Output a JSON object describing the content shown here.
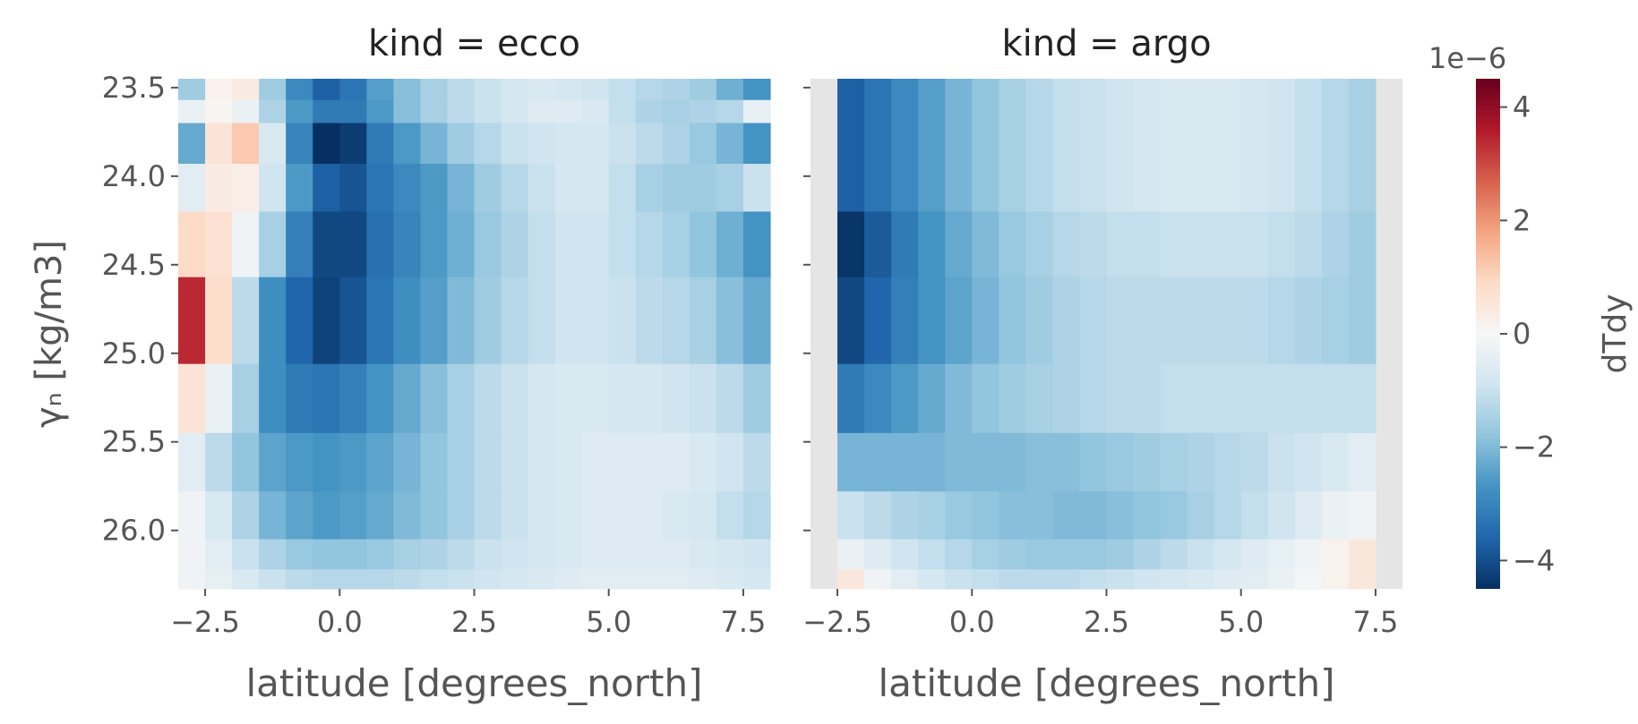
{
  "chart_data": [
    {
      "type": "heatmap",
      "title": "kind = ecco",
      "xlabel": "latitude [degrees_north]",
      "ylabel": "γₙ [kg/m3]",
      "x_ticks": [
        -2.5,
        0.0,
        2.5,
        5.0,
        7.5
      ],
      "x_tick_labels": [
        "−2.5",
        "0.0",
        "2.5",
        "5.0",
        "7.5"
      ],
      "y_ticks": [
        23.5,
        24.0,
        24.5,
        25.0,
        25.5,
        26.0
      ],
      "y_tick_labels": [
        "23.5",
        "24.0",
        "24.5",
        "25.0",
        "25.5",
        "26.0"
      ],
      "xlim": [
        -3.0,
        8.0
      ],
      "ylim": [
        26.33,
        23.45
      ],
      "x_edges": [
        -3.0,
        -2.5,
        -2.0,
        -1.5,
        -1.0,
        -0.5,
        0.0,
        0.5,
        1.0,
        1.5,
        2.0,
        2.5,
        3.0,
        3.5,
        4.0,
        4.5,
        5.0,
        5.5,
        6.0,
        6.5,
        7.0,
        7.5,
        8.0
      ],
      "y_edges": [
        23.45,
        23.57,
        23.7,
        23.93,
        24.2,
        24.57,
        25.06,
        25.45,
        25.78,
        26.05,
        26.22,
        26.33
      ],
      "z_scale": "1e-6",
      "z": [
        [
          -1.6,
          0.2,
          0.4,
          -1.6,
          -2.9,
          -3.7,
          -3.3,
          -2.5,
          -1.9,
          -1.5,
          -1.2,
          -1.0,
          -0.8,
          -0.7,
          -0.8,
          -0.9,
          -1.1,
          -1.3,
          -1.4,
          -1.6,
          -2.2,
          -2.7
        ],
        [
          -0.3,
          0.1,
          -0.3,
          -1.4,
          -2.6,
          -3.2,
          -3.2,
          -2.6,
          -1.9,
          -1.5,
          -1.2,
          -1.0,
          -0.8,
          -0.6,
          -0.6,
          -0.7,
          -1.1,
          -1.4,
          -1.5,
          -1.4,
          -1.3,
          -0.4
        ],
        [
          -2.3,
          0.6,
          1.2,
          -0.7,
          -3.0,
          -4.5,
          -4.3,
          -3.2,
          -2.6,
          -2.1,
          -1.6,
          -1.3,
          -1.0,
          -0.9,
          -0.8,
          -0.8,
          -1.0,
          -1.2,
          -1.4,
          -1.7,
          -2.1,
          -2.7
        ],
        [
          -0.5,
          0.4,
          0.3,
          -0.9,
          -2.6,
          -3.7,
          -3.9,
          -3.3,
          -2.9,
          -2.6,
          -2.1,
          -1.6,
          -1.3,
          -1.0,
          -0.8,
          -0.8,
          -1.1,
          -1.5,
          -1.6,
          -1.6,
          -1.5,
          -1.0
        ],
        [
          0.9,
          0.7,
          -0.2,
          -1.5,
          -3.1,
          -4.1,
          -4.1,
          -3.4,
          -3.0,
          -2.6,
          -2.2,
          -1.7,
          -1.4,
          -1.1,
          -0.9,
          -0.9,
          -1.1,
          -1.3,
          -1.5,
          -1.8,
          -2.2,
          -2.7
        ],
        [
          3.4,
          0.8,
          -1.2,
          -2.8,
          -3.6,
          -4.2,
          -3.9,
          -3.3,
          -2.8,
          -2.5,
          -2.0,
          -1.6,
          -1.3,
          -1.1,
          -0.9,
          -0.9,
          -1.0,
          -1.2,
          -1.3,
          -1.5,
          -1.9,
          -2.3
        ],
        [
          0.6,
          -0.3,
          -1.5,
          -2.8,
          -3.2,
          -3.3,
          -3.1,
          -2.7,
          -2.3,
          -1.9,
          -1.5,
          -1.2,
          -1.0,
          -0.8,
          -0.7,
          -0.7,
          -0.8,
          -0.8,
          -0.9,
          -1.0,
          -1.2,
          -1.6
        ],
        [
          -0.5,
          -1.2,
          -1.8,
          -2.4,
          -2.6,
          -2.7,
          -2.6,
          -2.4,
          -2.1,
          -1.8,
          -1.5,
          -1.2,
          -1.0,
          -0.8,
          -0.7,
          -0.6,
          -0.6,
          -0.6,
          -0.6,
          -0.7,
          -0.9,
          -1.2
        ],
        [
          -0.2,
          -0.7,
          -1.4,
          -2.1,
          -2.4,
          -2.6,
          -2.5,
          -2.3,
          -2.0,
          -1.8,
          -1.5,
          -1.2,
          -1.0,
          -0.8,
          -0.7,
          -0.6,
          -0.6,
          -0.6,
          -0.7,
          -0.8,
          -1.1,
          -1.3
        ],
        [
          -0.2,
          -0.5,
          -1.0,
          -1.4,
          -1.7,
          -1.8,
          -1.8,
          -1.7,
          -1.5,
          -1.4,
          -1.2,
          -1.0,
          -0.9,
          -0.8,
          -0.7,
          -0.6,
          -0.6,
          -0.6,
          -0.6,
          -0.7,
          -0.8,
          -0.9
        ],
        [
          -0.2,
          -0.4,
          -0.7,
          -1.0,
          -1.2,
          -1.3,
          -1.3,
          -1.3,
          -1.2,
          -1.1,
          -1.0,
          -0.9,
          -0.8,
          -0.7,
          -0.6,
          -0.5,
          -0.5,
          -0.5,
          -0.5,
          -0.6,
          -0.7,
          -0.8
        ]
      ]
    },
    {
      "type": "heatmap",
      "title": "kind = argo",
      "xlabel": "latitude [degrees_north]",
      "x_ticks": [
        -2.5,
        0.0,
        2.5,
        5.0,
        7.5
      ],
      "x_tick_labels": [
        "−2.5",
        "0.0",
        "2.5",
        "5.0",
        "7.5"
      ],
      "y_ticks": [
        23.5,
        24.0,
        24.5,
        25.0,
        25.5,
        26.0
      ],
      "xlim": [
        -3.0,
        8.0
      ],
      "ylim": [
        26.33,
        23.45
      ],
      "x_edges": [
        -2.5,
        -2.0,
        -1.5,
        -1.0,
        -0.5,
        0.0,
        0.5,
        1.0,
        1.5,
        2.0,
        2.5,
        3.0,
        3.5,
        4.0,
        4.5,
        5.0,
        5.5,
        6.0,
        6.5,
        7.0,
        7.5
      ],
      "y_edges": [
        23.45,
        24.2,
        24.57,
        25.06,
        25.45,
        25.78,
        26.05,
        26.22,
        26.33
      ],
      "z_scale": "1e-6",
      "z": [
        [
          -3.7,
          -3.3,
          -2.9,
          -2.5,
          -2.1,
          -1.8,
          -1.5,
          -1.3,
          -1.1,
          -1.0,
          -0.9,
          -0.8,
          -0.7,
          -0.7,
          -0.7,
          -0.8,
          -0.9,
          -1.1,
          -1.3,
          -1.5
        ],
        [
          -4.4,
          -3.8,
          -3.2,
          -2.7,
          -2.3,
          -2.0,
          -1.7,
          -1.5,
          -1.3,
          -1.2,
          -1.1,
          -1.1,
          -1.0,
          -1.0,
          -1.0,
          -1.0,
          -1.1,
          -1.2,
          -1.4,
          -1.6
        ],
        [
          -4.1,
          -3.6,
          -3.1,
          -2.7,
          -2.4,
          -2.1,
          -1.8,
          -1.6,
          -1.4,
          -1.3,
          -1.2,
          -1.2,
          -1.2,
          -1.2,
          -1.2,
          -1.2,
          -1.3,
          -1.4,
          -1.5,
          -1.6
        ],
        [
          -3.2,
          -2.9,
          -2.6,
          -2.3,
          -2.0,
          -1.8,
          -1.6,
          -1.5,
          -1.4,
          -1.3,
          -1.2,
          -1.2,
          -1.1,
          -1.1,
          -1.1,
          -1.1,
          -1.1,
          -1.1,
          -1.1,
          -1.1
        ],
        [
          -2.1,
          -2.1,
          -2.1,
          -2.1,
          -2.0,
          -2.0,
          -2.0,
          -1.9,
          -1.9,
          -1.8,
          -1.7,
          -1.6,
          -1.5,
          -1.4,
          -1.3,
          -1.2,
          -1.0,
          -0.9,
          -0.7,
          -0.5
        ],
        [
          -1.0,
          -1.2,
          -1.4,
          -1.5,
          -1.7,
          -1.8,
          -1.9,
          -1.9,
          -2.0,
          -2.0,
          -1.9,
          -1.8,
          -1.7,
          -1.5,
          -1.3,
          -1.1,
          -0.9,
          -0.6,
          -0.3,
          -0.2
        ],
        [
          -0.3,
          -0.6,
          -0.9,
          -1.1,
          -1.3,
          -1.5,
          -1.6,
          -1.7,
          -1.7,
          -1.7,
          -1.6,
          -1.4,
          -1.2,
          -1.0,
          -0.8,
          -0.6,
          -0.4,
          -0.2,
          0.2,
          0.5
        ],
        [
          0.5,
          -0.2,
          -0.5,
          -0.8,
          -1.0,
          -1.1,
          -1.2,
          -1.2,
          -1.2,
          -1.1,
          -1.0,
          -0.9,
          -0.8,
          -0.7,
          -0.6,
          -0.5,
          -0.3,
          -0.1,
          0.2,
          0.5
        ]
      ]
    }
  ],
  "colorbar": {
    "label": "dTdy",
    "offset_text": "1e−6",
    "vmin": -4.5,
    "vmax": 4.5,
    "ticks": [
      -4,
      -2,
      0,
      2,
      4
    ],
    "tick_labels": [
      "−4",
      "−2",
      "0",
      "2",
      "4"
    ],
    "colormap": "RdBu_r"
  },
  "styles": {
    "axes_background": "#e5e5e5",
    "tick_color": "#555555",
    "title_color": "#222222"
  }
}
